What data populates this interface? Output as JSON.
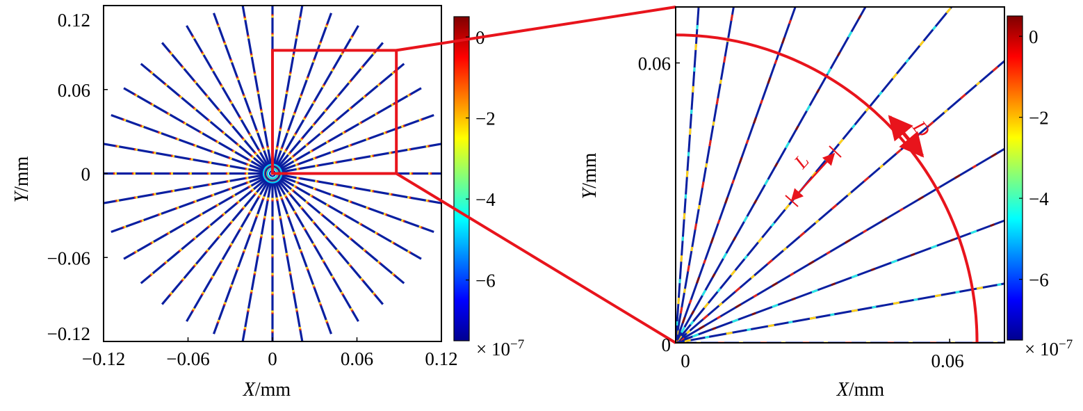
{
  "chart_data": [
    {
      "type": "scatter",
      "panel": "overview",
      "xlabel_var": "X",
      "xlabel_unit": "/mm",
      "ylabel_var": "Y",
      "ylabel_unit": "/mm",
      "xlim": [
        -0.12,
        0.12
      ],
      "ylim": [
        -0.12,
        0.12
      ],
      "xticks": [
        -0.12,
        -0.06,
        0,
        0.06,
        0.12
      ],
      "xtick_labels": [
        "−0.12",
        "−0.06",
        "0",
        "0.06",
        "0.12"
      ],
      "yticks": [
        -0.12,
        -0.06,
        0,
        0.06,
        0.12
      ],
      "ytick_labels": [
        "−0.12",
        "−0.06",
        "0",
        "0.06",
        "0.12"
      ],
      "grid": false,
      "rays": {
        "count": 36,
        "step_deg": 10,
        "r_inner": 0.004,
        "r_outer": 0.122
      },
      "zoom_box": {
        "x": [
          0,
          0.088
        ],
        "y": [
          0,
          0.088
        ]
      },
      "colorbar": {
        "ticks": [
          0,
          -2,
          -4,
          -6
        ],
        "tick_labels": [
          "0",
          "−2",
          "−4",
          "−6"
        ],
        "range": [
          -7.5,
          0.5
        ],
        "multiplier": "× 10",
        "multiplier_exp": "−7"
      }
    },
    {
      "type": "scatter",
      "panel": "zoom",
      "xlabel_var": "X",
      "xlabel_unit": "/mm",
      "ylabel_var": "Y",
      "ylabel_unit": "/mm",
      "xlim": [
        0,
        0.072
      ],
      "ylim": [
        0,
        0.072
      ],
      "xticks": [
        0,
        0.06
      ],
      "xtick_labels": [
        "0",
        "0.06"
      ],
      "yticks": [
        0,
        0.06
      ],
      "ytick_labels": [
        "0",
        "0.06"
      ],
      "grid": false,
      "rays": {
        "angles_deg": [
          0,
          10,
          20,
          30,
          40,
          50,
          60,
          70,
          80,
          86
        ]
      },
      "arc": {
        "radius": 0.066,
        "from_deg": 0,
        "to_deg": 90
      },
      "annotations": [
        {
          "text": "L",
          "meaning": "length along a ray"
        },
        {
          "text": "D",
          "meaning": "arc spacing between adjacent rays"
        }
      ],
      "colorbar": {
        "ticks": [
          0,
          -2,
          -4,
          -6
        ],
        "tick_labels": [
          "0",
          "−2",
          "−4",
          "−6"
        ],
        "range": [
          -7.5,
          0.5
        ],
        "multiplier": "× 10",
        "multiplier_exp": "−7"
      }
    }
  ],
  "style": {
    "highlight_color": "#e8141c",
    "ray_base_color": "#0a1fa0",
    "colormap": "jet",
    "colormap_stops": [
      "#7f0000",
      "#ff0000",
      "#ff7f00",
      "#ffff00",
      "#7fff7f",
      "#00ffff",
      "#007fff",
      "#0000ff",
      "#00008f"
    ]
  }
}
